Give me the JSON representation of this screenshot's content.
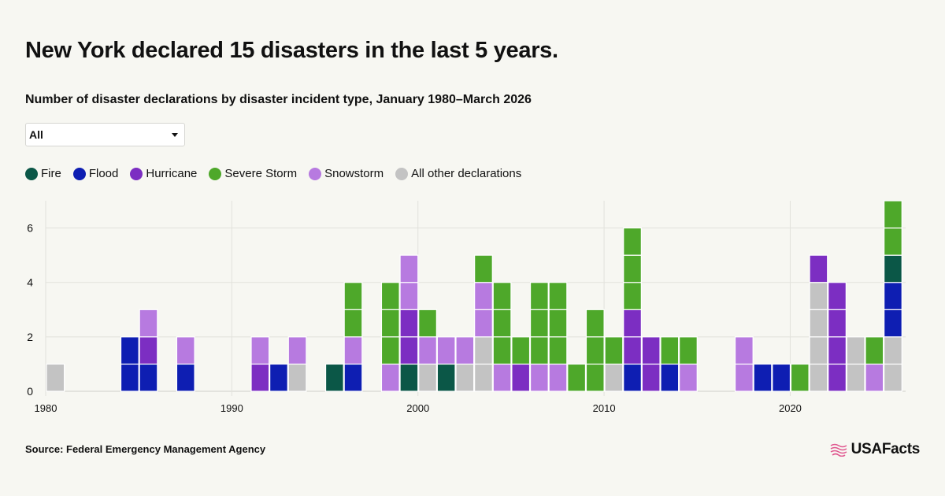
{
  "page": {
    "title": "New York declared 15 disasters in the last 5 years.",
    "subtitle": "Number of disaster declarations by disaster incident type, January 1980–March 2026",
    "source": "Source: Federal Emergency Management Agency",
    "brand": "USAFacts"
  },
  "filter": {
    "selected": "All",
    "icon": "chevron-down-icon"
  },
  "colors": {
    "fire": "#0b5747",
    "flood": "#0e1eb2",
    "hurricane": "#7c2ec2",
    "severe_storm": "#4ea82a",
    "snowstorm": "#b77ae0",
    "other": "#c3c3c3",
    "brand": "#e0578f"
  },
  "legend": [
    {
      "key": "fire",
      "label": "Fire"
    },
    {
      "key": "flood",
      "label": "Flood"
    },
    {
      "key": "hurricane",
      "label": "Hurricane"
    },
    {
      "key": "severe_storm",
      "label": "Severe Storm"
    },
    {
      "key": "snowstorm",
      "label": "Snowstorm"
    },
    {
      "key": "other",
      "label": "All other declarations"
    }
  ],
  "chart_data": {
    "type": "bar",
    "stacked": true,
    "x_type": "year",
    "xlim": [
      1980,
      2026
    ],
    "ylim": [
      0,
      7
    ],
    "x_ticks": [
      1980,
      1990,
      2000,
      2010,
      2020
    ],
    "y_ticks": [
      0,
      2,
      4,
      6
    ],
    "grid": true,
    "stack_order": [
      "other",
      "flood",
      "fire",
      "hurricane",
      "snowstorm",
      "severe_storm"
    ],
    "years": [
      {
        "year": 1980,
        "other": 1
      },
      {
        "year": 1984,
        "flood": 2
      },
      {
        "year": 1985,
        "flood": 1,
        "hurricane": 1,
        "snowstorm": 1
      },
      {
        "year": 1987,
        "flood": 1,
        "snowstorm": 1
      },
      {
        "year": 1991,
        "hurricane": 1,
        "snowstorm": 1
      },
      {
        "year": 1992,
        "flood": 1
      },
      {
        "year": 1993,
        "other": 1,
        "snowstorm": 1
      },
      {
        "year": 1995,
        "fire": 1
      },
      {
        "year": 1996,
        "flood": 1,
        "snowstorm": 1,
        "severe_storm": 2
      },
      {
        "year": 1998,
        "snowstorm": 1,
        "severe_storm": 3
      },
      {
        "year": 1999,
        "hurricane": 2,
        "snowstorm": 2,
        "fire": 1
      },
      {
        "year": 2000,
        "other": 1,
        "snowstorm": 1,
        "severe_storm": 1
      },
      {
        "year": 2001,
        "snowstorm": 1,
        "fire": 1
      },
      {
        "year": 2002,
        "other": 1,
        "snowstorm": 1
      },
      {
        "year": 2003,
        "other": 2,
        "snowstorm": 2,
        "severe_storm": 1
      },
      {
        "year": 2004,
        "snowstorm": 1,
        "severe_storm": 3
      },
      {
        "year": 2005,
        "hurricane": 1,
        "severe_storm": 1
      },
      {
        "year": 2006,
        "snowstorm": 1,
        "severe_storm": 3
      },
      {
        "year": 2007,
        "snowstorm": 1,
        "severe_storm": 3
      },
      {
        "year": 2008,
        "severe_storm": 1
      },
      {
        "year": 2009,
        "severe_storm": 3
      },
      {
        "year": 2010,
        "other": 1,
        "severe_storm": 1
      },
      {
        "year": 2011,
        "flood": 1,
        "hurricane": 2,
        "severe_storm": 3
      },
      {
        "year": 2012,
        "hurricane": 2
      },
      {
        "year": 2013,
        "flood": 1,
        "severe_storm": 1
      },
      {
        "year": 2014,
        "snowstorm": 1,
        "severe_storm": 1
      },
      {
        "year": 2017,
        "snowstorm": 2
      },
      {
        "year": 2018,
        "flood": 1
      },
      {
        "year": 2019,
        "flood": 1
      },
      {
        "year": 2020,
        "severe_storm": 1
      },
      {
        "year": 2021,
        "other": 4,
        "hurricane": 1
      },
      {
        "year": 2022,
        "hurricane": 4
      },
      {
        "year": 2023,
        "other": 2
      },
      {
        "year": 2024,
        "snowstorm": 1,
        "severe_storm": 1
      },
      {
        "year": 2025,
        "other": 2,
        "flood": 2,
        "fire": 1,
        "severe_storm": 2
      }
    ]
  }
}
